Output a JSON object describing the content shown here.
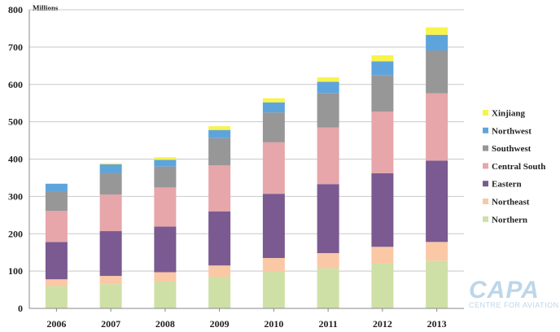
{
  "chart_data": {
    "type": "bar",
    "stacked": true,
    "unit_label": "Millions",
    "categories": [
      "2006",
      "2007",
      "2008",
      "2009",
      "2010",
      "2011",
      "2012",
      "2013"
    ],
    "ylim": [
      0,
      800
    ],
    "yticks": [
      0,
      100,
      200,
      300,
      400,
      500,
      600,
      700,
      800
    ],
    "grid": true,
    "legend_position": "right",
    "series": [
      {
        "name": "Northern",
        "color": "#cfe0a6",
        "values": [
          60,
          65,
          72,
          85,
          100,
          108,
          120,
          128
        ]
      },
      {
        "name": "Northeast",
        "color": "#fbc8a6",
        "values": [
          18,
          22,
          25,
          30,
          35,
          40,
          45,
          50
        ]
      },
      {
        "name": "Eastern",
        "color": "#7a5a91",
        "values": [
          100,
          120,
          122,
          145,
          172,
          185,
          197,
          218
        ]
      },
      {
        "name": "Central South",
        "color": "#e6a6aa",
        "values": [
          83,
          98,
          105,
          123,
          138,
          152,
          165,
          180
        ]
      },
      {
        "name": "Southwest",
        "color": "#979797",
        "values": [
          53,
          58,
          56,
          73,
          80,
          92,
          98,
          115
        ]
      },
      {
        "name": "Northwest",
        "color": "#5ea4dc",
        "values": [
          20,
          23,
          18,
          22,
          27,
          30,
          37,
          42
        ]
      },
      {
        "name": "Xinjiang",
        "color": "#f8f34b",
        "values": [
          0,
          3,
          7,
          10,
          11,
          12,
          16,
          20
        ]
      }
    ]
  },
  "logo": {
    "name": "CAPA",
    "subtitle": "CENTRE FOR AVIATION"
  }
}
